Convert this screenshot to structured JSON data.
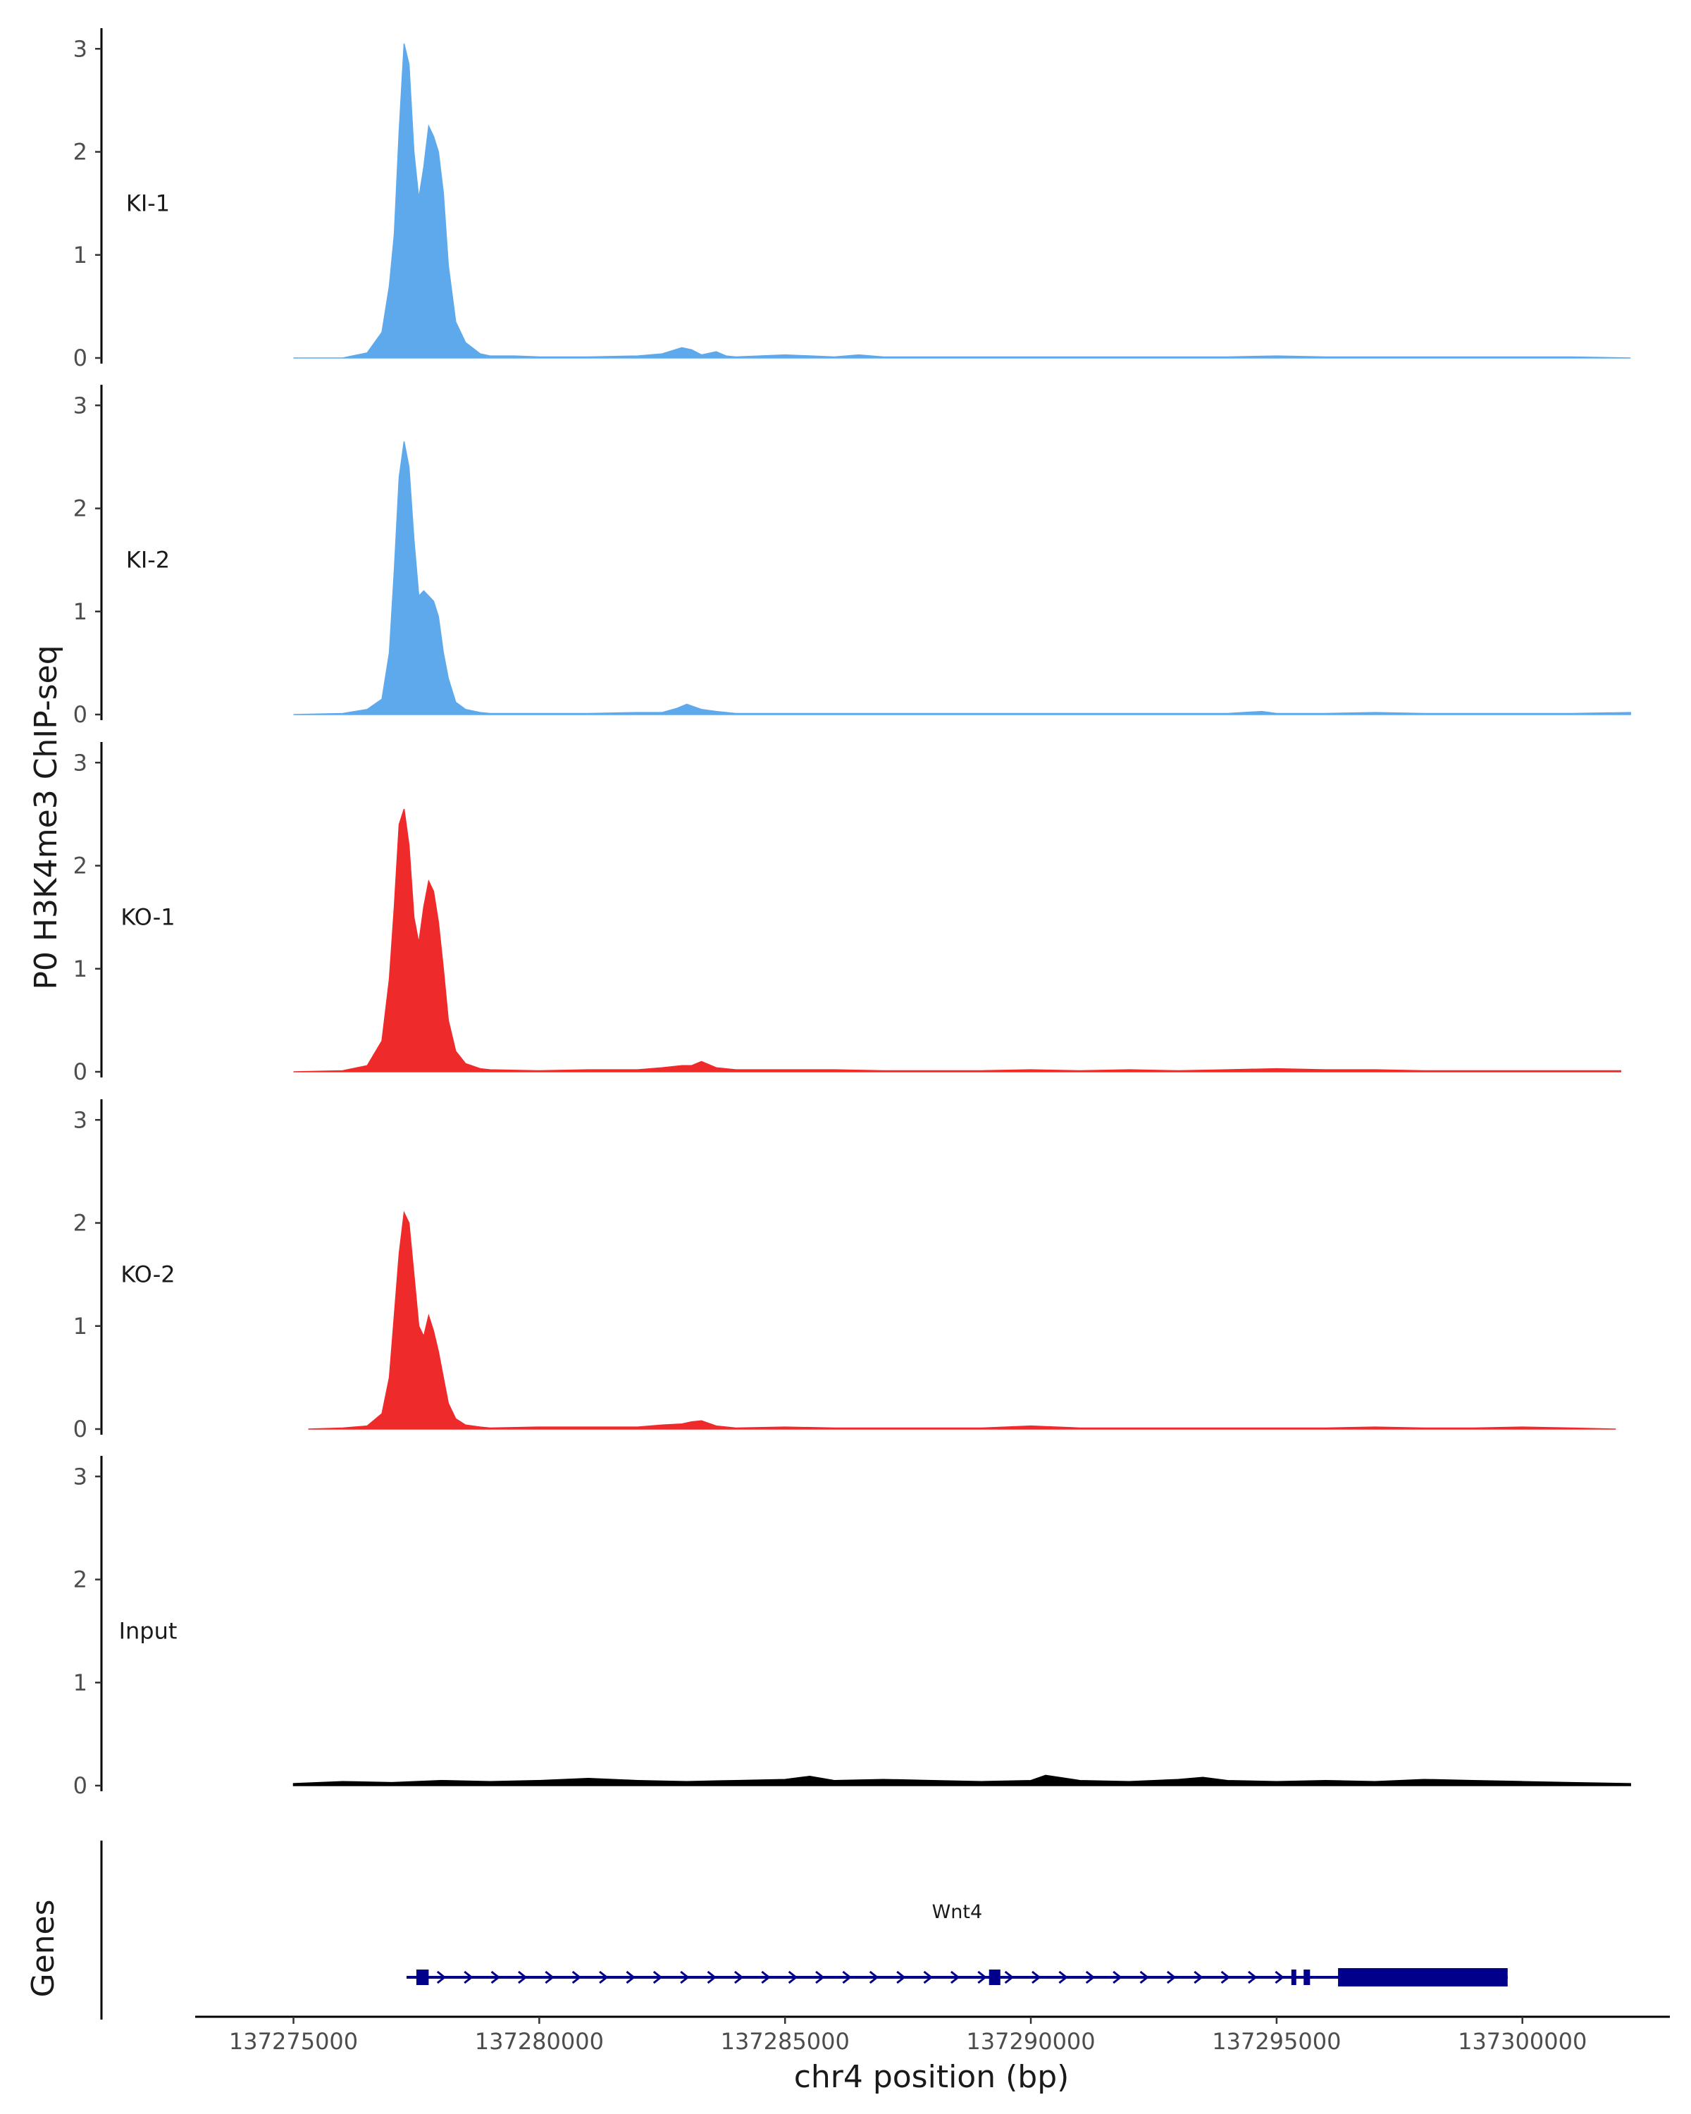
{
  "chart_data": {
    "type": "area",
    "title": "",
    "ylabel": "P0 H3K4me3 ChIP-seq",
    "xlabel": "chr4 position (bp)",
    "ylim": [
      0,
      3.2
    ],
    "yticks": [
      0,
      1,
      2,
      3
    ],
    "xlim": [
      137273000,
      137303000
    ],
    "xticks": [
      137275000,
      137280000,
      137285000,
      137290000,
      137295000,
      137300000
    ],
    "xtick_labels": [
      "137275000",
      "137280000",
      "137285000",
      "137290000",
      "137295000",
      "137300000"
    ],
    "colors": {
      "KI": "#5DA9EC",
      "KO": "#EE2A2A",
      "Input": "#000000",
      "gene": "#00008B"
    },
    "tracks": [
      {
        "name": "KI-1",
        "color": "#5DA9EC",
        "x": [
          137275000,
          137276000,
          137276500,
          137276800,
          137276950,
          137277050,
          137277150,
          137277250,
          137277350,
          137277450,
          137277550,
          137277650,
          137277750,
          137277850,
          137277950,
          137278050,
          137278150,
          137278300,
          137278500,
          137278800,
          137279000,
          137279500,
          137280000,
          137281000,
          137282000,
          137282500,
          137282900,
          137283100,
          137283300,
          137283600,
          137283800,
          137284000,
          137285000,
          137286000,
          137286500,
          137287000,
          137288000,
          137289000,
          137290000,
          137291000,
          137292000,
          137293000,
          137294000,
          137295000,
          137296000,
          137297000,
          137298000,
          137299000,
          137300000,
          137301000,
          137302200
        ],
        "values": [
          0,
          0,
          0.05,
          0.25,
          0.7,
          1.2,
          2.2,
          3.05,
          2.85,
          2.0,
          1.55,
          1.85,
          2.25,
          2.15,
          2.0,
          1.6,
          0.9,
          0.35,
          0.15,
          0.04,
          0.02,
          0.02,
          0.01,
          0.01,
          0.02,
          0.04,
          0.1,
          0.08,
          0.03,
          0.06,
          0.02,
          0.01,
          0.03,
          0.01,
          0.03,
          0.01,
          0.01,
          0.01,
          0.01,
          0.01,
          0.01,
          0.01,
          0.01,
          0.02,
          0.01,
          0.01,
          0.01,
          0.01,
          0.01,
          0.01,
          0
        ]
      },
      {
        "name": "KI-2",
        "color": "#5DA9EC",
        "x": [
          137275000,
          137276000,
          137276500,
          137276800,
          137276950,
          137277050,
          137277150,
          137277250,
          137277350,
          137277450,
          137277550,
          137277650,
          137277750,
          137277850,
          137277950,
          137278050,
          137278150,
          137278300,
          137278500,
          137278800,
          137279000,
          137280000,
          137281000,
          137282000,
          137282500,
          137282800,
          137283000,
          137283300,
          137283600,
          137284000,
          137285000,
          137286000,
          137287000,
          137288000,
          137289000,
          137290000,
          137291000,
          137292000,
          137293000,
          137294000,
          137294700,
          137295000,
          137296000,
          137297000,
          137298000,
          137299000,
          137300000,
          137301000,
          137302200
        ],
        "values": [
          0,
          0.01,
          0.05,
          0.15,
          0.6,
          1.4,
          2.3,
          2.65,
          2.4,
          1.7,
          1.15,
          1.2,
          1.15,
          1.1,
          0.95,
          0.6,
          0.35,
          0.12,
          0.05,
          0.02,
          0.01,
          0.01,
          0.01,
          0.02,
          0.02,
          0.06,
          0.1,
          0.05,
          0.03,
          0.01,
          0.01,
          0.01,
          0.01,
          0.01,
          0.01,
          0.01,
          0.01,
          0.01,
          0.01,
          0.01,
          0.03,
          0.01,
          0.01,
          0.02,
          0.01,
          0.01,
          0.01,
          0.01,
          0.02
        ]
      },
      {
        "name": "KO-1",
        "color": "#EE2A2A",
        "x": [
          137275000,
          137276000,
          137276500,
          137276800,
          137276950,
          137277050,
          137277150,
          137277250,
          137277350,
          137277450,
          137277550,
          137277650,
          137277750,
          137277850,
          137277950,
          137278050,
          137278150,
          137278300,
          137278500,
          137278800,
          137279000,
          137280000,
          137281000,
          137282000,
          137282500,
          137282900,
          137283100,
          137283300,
          137283600,
          137284000,
          137285000,
          137286000,
          137287000,
          137288000,
          137289000,
          137290000,
          137291000,
          137292000,
          137293000,
          137294000,
          137295000,
          137296000,
          137297000,
          137298000,
          137299000,
          137300000,
          137301000,
          137302000
        ],
        "values": [
          0,
          0.01,
          0.06,
          0.3,
          0.9,
          1.6,
          2.4,
          2.55,
          2.2,
          1.5,
          1.25,
          1.6,
          1.85,
          1.75,
          1.45,
          1.0,
          0.5,
          0.2,
          0.08,
          0.03,
          0.02,
          0.01,
          0.02,
          0.02,
          0.04,
          0.06,
          0.06,
          0.1,
          0.04,
          0.02,
          0.02,
          0.02,
          0.01,
          0.01,
          0.01,
          0.02,
          0.01,
          0.02,
          0.01,
          0.02,
          0.03,
          0.02,
          0.02,
          0.01,
          0.01,
          0.01,
          0.01,
          0.01
        ]
      },
      {
        "name": "KO-2",
        "color": "#EE2A2A",
        "x": [
          137275300,
          137276000,
          137276500,
          137276800,
          137276950,
          137277050,
          137277150,
          137277250,
          137277350,
          137277450,
          137277550,
          137277650,
          137277750,
          137277850,
          137277950,
          137278050,
          137278150,
          137278300,
          137278500,
          137278800,
          137279000,
          137280000,
          137281000,
          137282000,
          137282500,
          137282900,
          137283100,
          137283300,
          137283600,
          137284000,
          137285000,
          137286000,
          137287000,
          137288000,
          137289000,
          137290000,
          137291000,
          137292000,
          137293000,
          137294000,
          137295000,
          137296000,
          137297000,
          137298000,
          137299000,
          137300000,
          137301000,
          137301900
        ],
        "values": [
          0,
          0.01,
          0.03,
          0.15,
          0.5,
          1.1,
          1.7,
          2.1,
          2.0,
          1.5,
          1.0,
          0.9,
          1.1,
          0.95,
          0.75,
          0.5,
          0.25,
          0.1,
          0.04,
          0.02,
          0.01,
          0.02,
          0.02,
          0.02,
          0.04,
          0.05,
          0.07,
          0.08,
          0.03,
          0.01,
          0.02,
          0.01,
          0.01,
          0.01,
          0.01,
          0.03,
          0.01,
          0.01,
          0.01,
          0.01,
          0.01,
          0.01,
          0.02,
          0.01,
          0.01,
          0.02,
          0.01,
          0
        ]
      },
      {
        "name": "Input",
        "color": "#000000",
        "x": [
          137275000,
          137276000,
          137277000,
          137278000,
          137279000,
          137280000,
          137281000,
          137282000,
          137283000,
          137284000,
          137285000,
          137285500,
          137286000,
          137287000,
          137288000,
          137289000,
          137290000,
          137290300,
          137291000,
          137292000,
          137293000,
          137293500,
          137294000,
          137295000,
          137296000,
          137297000,
          137298000,
          137299000,
          137300000,
          137301000,
          137302200
        ],
        "values": [
          0.02,
          0.04,
          0.03,
          0.05,
          0.04,
          0.05,
          0.07,
          0.05,
          0.04,
          0.05,
          0.06,
          0.09,
          0.05,
          0.06,
          0.05,
          0.04,
          0.05,
          0.1,
          0.05,
          0.04,
          0.06,
          0.08,
          0.05,
          0.04,
          0.05,
          0.04,
          0.06,
          0.05,
          0.04,
          0.03,
          0.02
        ]
      }
    ],
    "gene_track": {
      "label": "Genes",
      "gene_name": "Wnt4",
      "start": 137277300,
      "end": 137299700,
      "strand": "+",
      "exons": [
        [
          137277500,
          137277750
        ],
        [
          137289150,
          137289380
        ],
        [
          137295300,
          137295400
        ],
        [
          137295550,
          137295680
        ],
        [
          137296250,
          137299700
        ]
      ]
    }
  }
}
